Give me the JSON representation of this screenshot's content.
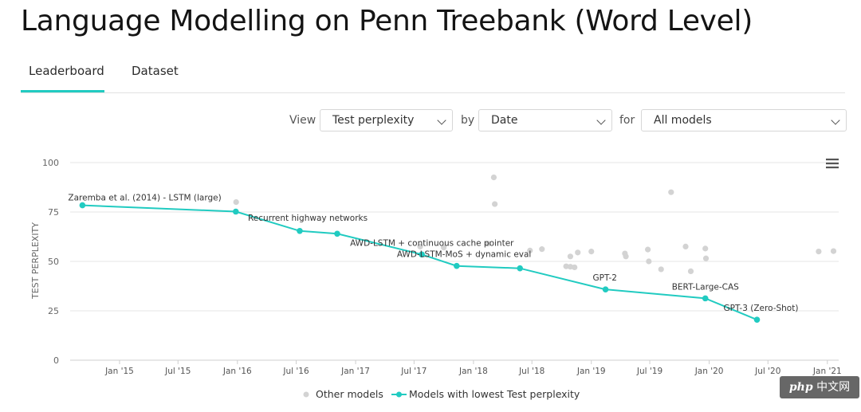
{
  "page": {
    "title": "Language Modelling on Penn Treebank (Word Level)"
  },
  "tabs": [
    {
      "label": "Leaderboard",
      "active": true
    },
    {
      "label": "Dataset",
      "active": false
    }
  ],
  "filters": {
    "view_label": "View",
    "view_value": "Test perplexity",
    "by_label": "by",
    "by_value": "Date",
    "for_label": "for",
    "for_value": "All models"
  },
  "watermark": {
    "prefix": "php",
    "suffix": "中文网"
  },
  "colors": {
    "accent": "#21cbc1",
    "other": "#d3d3d3",
    "grid": "#e6e6e6"
  },
  "chart_data": {
    "type": "scatter",
    "ylabel": "TEST PERPLEXITY",
    "xlabel": "",
    "ylim": [
      0,
      100
    ],
    "yticks": [
      0,
      25,
      50,
      75,
      100
    ],
    "xlim": [
      "2014-08-01",
      "2021-02-05"
    ],
    "xticks": [
      "Jan '15",
      "Jul '15",
      "Jan '16",
      "Jul '16",
      "Jan '17",
      "Jul '17",
      "Jan '18",
      "Jul '18",
      "Jan '19",
      "Jul '19",
      "Jan '20",
      "Jul '20",
      "Jan '21"
    ],
    "xtick_dates": [
      "2015-01-01",
      "2015-07-01",
      "2016-01-01",
      "2016-07-01",
      "2017-01-01",
      "2017-07-01",
      "2018-01-01",
      "2018-07-01",
      "2019-01-01",
      "2019-07-01",
      "2020-01-01",
      "2020-07-01",
      "2021-01-01"
    ],
    "grid": true,
    "legend_position": "bottom-center",
    "series": [
      {
        "name": "Other models",
        "color": "#d3d3d3",
        "points": [
          {
            "x": "2015-12-28",
            "y": 80
          },
          {
            "x": "2018-03-05",
            "y": 92.5
          },
          {
            "x": "2018-03-08",
            "y": 79
          },
          {
            "x": "2018-02-15",
            "y": 59
          },
          {
            "x": "2017-07-20",
            "y": 57.5
          },
          {
            "x": "2017-10-01",
            "y": 57
          },
          {
            "x": "2018-06-25",
            "y": 55.5
          },
          {
            "x": "2018-08-01",
            "y": 56.2
          },
          {
            "x": "2018-10-15",
            "y": 47.5
          },
          {
            "x": "2018-10-28",
            "y": 47.3
          },
          {
            "x": "2018-11-10",
            "y": 47
          },
          {
            "x": "2018-10-28",
            "y": 52.5
          },
          {
            "x": "2018-11-20",
            "y": 54.5
          },
          {
            "x": "2019-01-01",
            "y": 55
          },
          {
            "x": "2019-04-15",
            "y": 54
          },
          {
            "x": "2019-04-18",
            "y": 52.5
          },
          {
            "x": "2019-06-25",
            "y": 56
          },
          {
            "x": "2019-06-28",
            "y": 50
          },
          {
            "x": "2019-08-05",
            "y": 46
          },
          {
            "x": "2019-09-05",
            "y": 85
          },
          {
            "x": "2019-10-20",
            "y": 57.5
          },
          {
            "x": "2019-11-05",
            "y": 45
          },
          {
            "x": "2019-12-20",
            "y": 56.5
          },
          {
            "x": "2019-12-22",
            "y": 51.5
          },
          {
            "x": "2020-12-05",
            "y": 55
          },
          {
            "x": "2021-01-20",
            "y": 55.2
          }
        ]
      },
      {
        "name": "Models with lowest Test perplexity",
        "color": "#21cbc1",
        "points": [
          {
            "x": "2014-09-08",
            "y": 78.4,
            "label": "Zaremba et al. (2014) - LSTM (large)"
          },
          {
            "x": "2015-12-27",
            "y": 75.2,
            "label": ""
          },
          {
            "x": "2016-07-12",
            "y": 65.4,
            "label": "Recurrent highway networks"
          },
          {
            "x": "2016-11-05",
            "y": 64,
            "label": ""
          },
          {
            "x": "2017-07-25",
            "y": 53.5,
            "label": "AWD-LSTM + continuous cache pointer"
          },
          {
            "x": "2017-11-10",
            "y": 47.7,
            "label": "AWD-LSTM-MoS + dynamic eval"
          },
          {
            "x": "2018-05-25",
            "y": 46.5,
            "label": ""
          },
          {
            "x": "2019-02-14",
            "y": 35.8,
            "label": "GPT-2"
          },
          {
            "x": "2019-12-20",
            "y": 31.3,
            "label": "BERT-Large-CAS"
          },
          {
            "x": "2020-05-28",
            "y": 20.5,
            "label": "GPT-3 (Zero-Shot)"
          }
        ]
      }
    ]
  }
}
